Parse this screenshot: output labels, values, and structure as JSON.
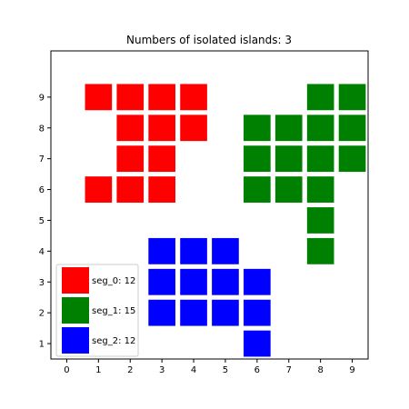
{
  "chart_data": {
    "type": "heatmap",
    "title": "Numbers of isolated islands: 3",
    "xlabel": "",
    "ylabel": "",
    "xlim": [
      -0.5,
      9.5
    ],
    "ylim": [
      0.5,
      10.5
    ],
    "xticks": [
      "0",
      "1",
      "2",
      "3",
      "4",
      "5",
      "6",
      "7",
      "8",
      "9"
    ],
    "yticks": [
      "1",
      "2",
      "3",
      "4",
      "5",
      "6",
      "7",
      "8",
      "9"
    ],
    "grid": false,
    "legend_position": "lower-left",
    "series": [
      {
        "name": "seg_0: 12",
        "color": "#ff0000",
        "cells": [
          [
            1,
            9
          ],
          [
            2,
            9
          ],
          [
            3,
            9
          ],
          [
            4,
            9
          ],
          [
            2,
            8
          ],
          [
            3,
            8
          ],
          [
            4,
            8
          ],
          [
            2,
            7
          ],
          [
            3,
            7
          ],
          [
            1,
            6
          ],
          [
            2,
            6
          ],
          [
            3,
            6
          ]
        ]
      },
      {
        "name": "seg_1: 15",
        "color": "#008000",
        "cells": [
          [
            8,
            9
          ],
          [
            9,
            9
          ],
          [
            6,
            8
          ],
          [
            7,
            8
          ],
          [
            8,
            8
          ],
          [
            9,
            8
          ],
          [
            6,
            7
          ],
          [
            7,
            7
          ],
          [
            8,
            7
          ],
          [
            9,
            7
          ],
          [
            6,
            6
          ],
          [
            7,
            6
          ],
          [
            8,
            6
          ],
          [
            8,
            5
          ],
          [
            8,
            4
          ]
        ]
      },
      {
        "name": "seg_2: 12",
        "color": "#0000ff",
        "cells": [
          [
            3,
            4
          ],
          [
            4,
            4
          ],
          [
            5,
            4
          ],
          [
            3,
            3
          ],
          [
            4,
            3
          ],
          [
            5,
            3
          ],
          [
            6,
            3
          ],
          [
            3,
            2
          ],
          [
            4,
            2
          ],
          [
            5,
            2
          ],
          [
            6,
            2
          ],
          [
            6,
            1
          ]
        ]
      }
    ]
  }
}
